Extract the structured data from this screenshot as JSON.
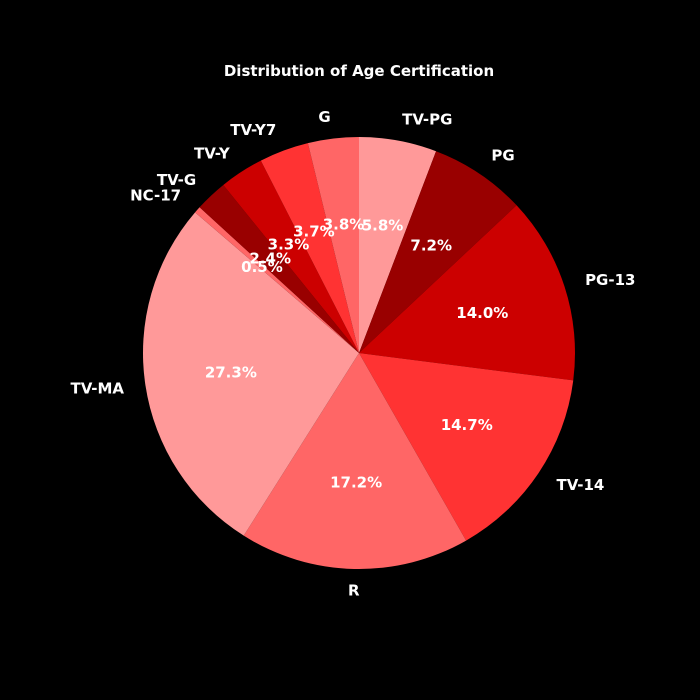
{
  "chart_data": {
    "type": "pie",
    "title": "Distribution of Age Certification",
    "start_angle_deg": 90,
    "direction": "clockwise",
    "slices": [
      {
        "label": "TV-PG",
        "value": 5.8,
        "pct_label": "5.8%",
        "color": "#ff9999"
      },
      {
        "label": "PG",
        "value": 7.2,
        "pct_label": "7.2%",
        "color": "#990000"
      },
      {
        "label": "PG-13",
        "value": 14.0,
        "pct_label": "14.0%",
        "color": "#cc0000"
      },
      {
        "label": "TV-14",
        "value": 14.7,
        "pct_label": "14.7%",
        "color": "#ff3333"
      },
      {
        "label": "R",
        "value": 17.2,
        "pct_label": "17.2%",
        "color": "#ff6666"
      },
      {
        "label": "TV-MA",
        "value": 27.3,
        "pct_label": "27.3%",
        "color": "#ff9999"
      },
      {
        "label": "NC-17",
        "value": 0.5,
        "pct_label": "0.5%",
        "color": "#ff6666"
      },
      {
        "label": "TV-G",
        "value": 2.4,
        "pct_label": "2.4%",
        "color": "#990000"
      },
      {
        "label": "TV-Y",
        "value": 3.3,
        "pct_label": "3.3%",
        "color": "#cc0000"
      },
      {
        "label": "TV-Y7",
        "value": 3.7,
        "pct_label": "3.7%",
        "color": "#ff3333"
      },
      {
        "label": "G",
        "value": 3.8,
        "pct_label": "3.8%",
        "color": "#ff6666"
      }
    ]
  }
}
